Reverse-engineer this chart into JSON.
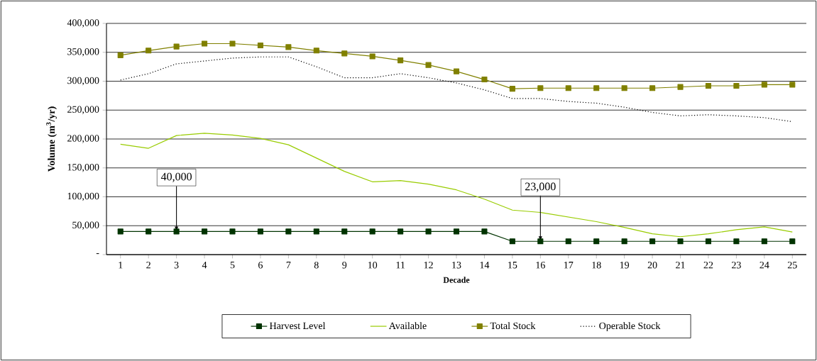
{
  "chart_data": {
    "type": "line",
    "xlabel": "Decade",
    "ylabel": "Volume (m$^{3}$/yr)",
    "categories": [
      "1",
      "2",
      "3",
      "4",
      "5",
      "6",
      "7",
      "8",
      "9",
      "10",
      "11",
      "12",
      "13",
      "14",
      "15",
      "16",
      "17",
      "18",
      "19",
      "20",
      "21",
      "22",
      "23",
      "24",
      "25"
    ],
    "series": [
      {
        "name": "Harvest Level",
        "color": "#003300",
        "marker": "square",
        "line_style": "solid",
        "values": [
          40000,
          40000,
          40000,
          40000,
          40000,
          40000,
          40000,
          40000,
          40000,
          40000,
          40000,
          40000,
          40000,
          40000,
          23000,
          23000,
          23000,
          23000,
          23000,
          23000,
          23000,
          23000,
          23000,
          23000,
          23000
        ]
      },
      {
        "name": "Available",
        "color": "#99cc00",
        "marker": "none",
        "line_style": "solid",
        "values": [
          191000,
          184000,
          206000,
          210000,
          207000,
          201000,
          190000,
          167000,
          144000,
          126000,
          128000,
          122000,
          112000,
          96000,
          77000,
          73000,
          65000,
          57000,
          47000,
          36000,
          31000,
          36000,
          43000,
          48000,
          39000
        ]
      },
      {
        "name": "Total Stock",
        "color": "#808000",
        "marker": "square",
        "line_style": "solid",
        "values": [
          345000,
          353000,
          360000,
          365000,
          365000,
          362000,
          359000,
          353000,
          348000,
          343000,
          336000,
          328000,
          317000,
          303000,
          287000,
          288000,
          288000,
          288000,
          288000,
          288000,
          290000,
          292000,
          292000,
          294000,
          294000
        ]
      },
      {
        "name": "Operable Stock",
        "color": "#000000",
        "marker": "none",
        "line_style": "dotted",
        "values": [
          302000,
          313000,
          330000,
          335000,
          340000,
          342000,
          342000,
          325000,
          306000,
          306000,
          313000,
          306000,
          297000,
          285000,
          270000,
          270000,
          265000,
          262000,
          255000,
          246000,
          240000,
          242000,
          240000,
          237000,
          230000
        ]
      }
    ],
    "ylim": [
      0,
      400000
    ],
    "yticks": [
      {
        "value": 0,
        "label": "-"
      },
      {
        "value": 50000,
        "label": "50,000"
      },
      {
        "value": 100000,
        "label": "100,000"
      },
      {
        "value": 150000,
        "label": "150,000"
      },
      {
        "value": 200000,
        "label": "200,000"
      },
      {
        "value": 250000,
        "label": "250,000"
      },
      {
        "value": 300000,
        "label": "300,000"
      },
      {
        "value": 350000,
        "label": "350,000"
      },
      {
        "value": 400000,
        "label": "400,000"
      }
    ],
    "grid": "y",
    "legend": "bottom",
    "annotations": [
      {
        "text": "40,000",
        "x": "3",
        "y": 40000
      },
      {
        "text": "23,000",
        "x": "16",
        "y": 23000
      }
    ]
  }
}
